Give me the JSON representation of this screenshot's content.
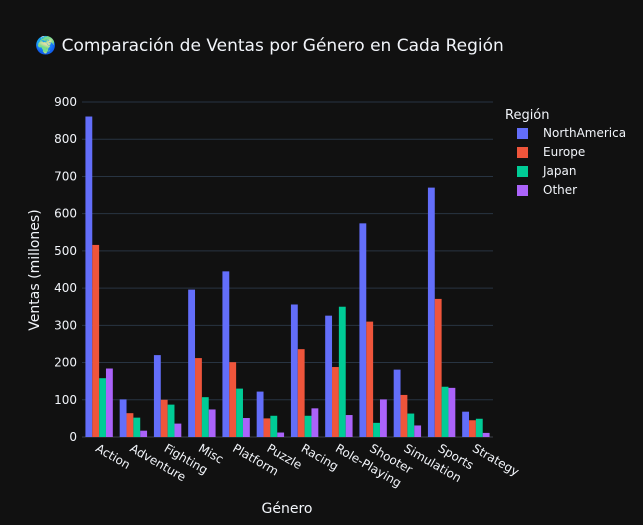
{
  "chart_data": {
    "type": "bar",
    "title": "🌍 Comparación de Ventas por Género en Cada Región",
    "xlabel": "Género",
    "ylabel": "Ventas (millones)",
    "ylim": [
      0,
      900
    ],
    "yticks": [
      0,
      100,
      200,
      300,
      400,
      500,
      600,
      700,
      800,
      900
    ],
    "grid": true,
    "legend_title": "Región",
    "legend_position": "top-right",
    "categories": [
      "Action",
      "Adventure",
      "Fighting",
      "Misc",
      "Platform",
      "Puzzle",
      "Racing",
      "Role-Playing",
      "Shooter",
      "Simulation",
      "Sports",
      "Strategy"
    ],
    "series": [
      {
        "name": "NorthAmerica",
        "color": "#636efa",
        "values": [
          861,
          101,
          220,
          396,
          445,
          122,
          356,
          326,
          574,
          181,
          670,
          68
        ]
      },
      {
        "name": "Europe",
        "color": "#ef553b",
        "values": [
          516,
          64,
          100,
          212,
          201,
          50,
          236,
          188,
          310,
          113,
          371,
          45
        ]
      },
      {
        "name": "Japan",
        "color": "#00cc96",
        "values": [
          158,
          52,
          87,
          107,
          130,
          57,
          57,
          350,
          38,
          63,
          135,
          49
        ]
      },
      {
        "name": "Other",
        "color": "#ab63fa",
        "values": [
          184,
          17,
          36,
          74,
          51,
          12,
          77,
          59,
          101,
          31,
          132,
          11
        ]
      }
    ]
  }
}
